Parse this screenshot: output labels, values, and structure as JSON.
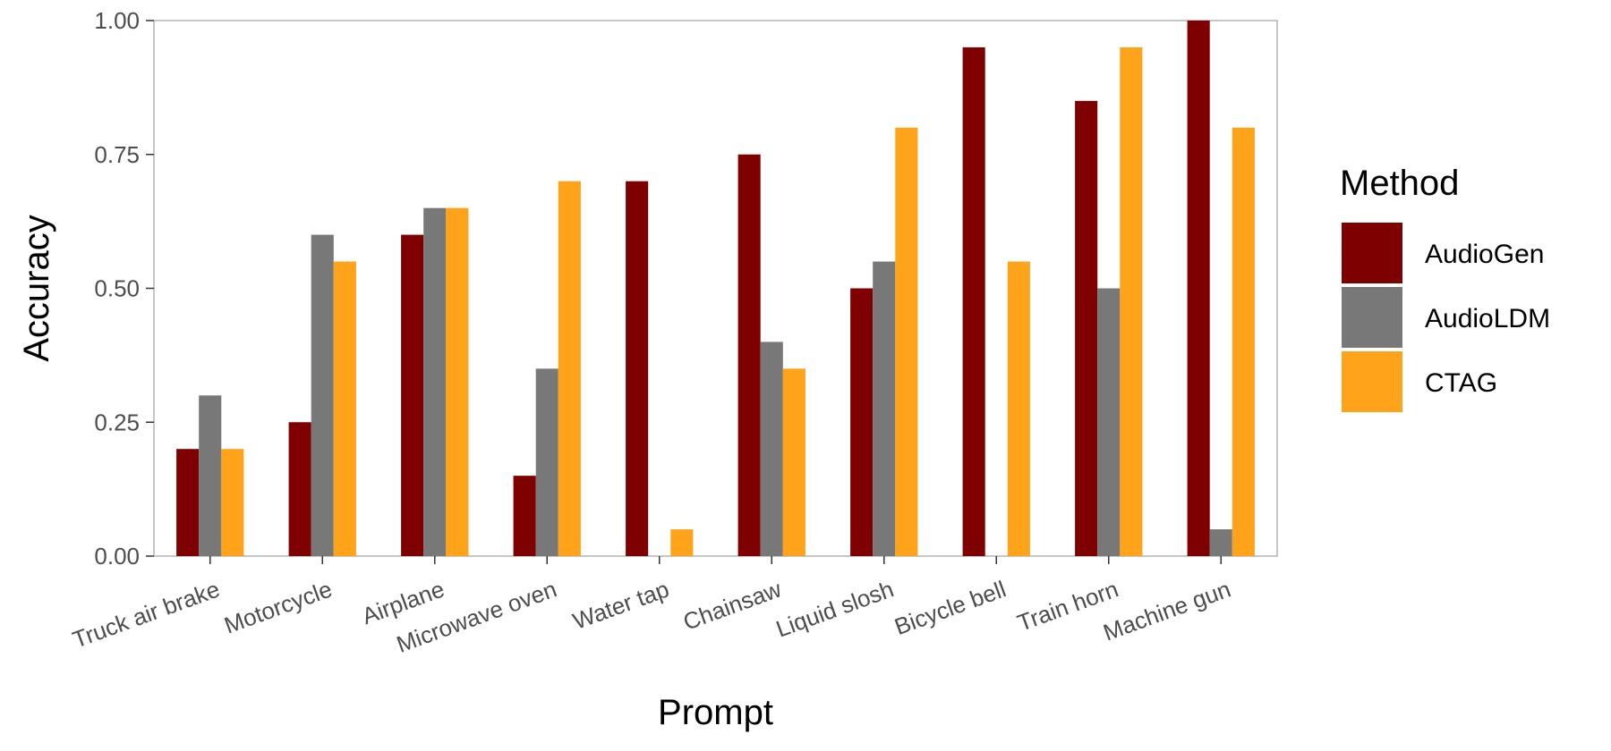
{
  "chart_data": {
    "type": "bar",
    "title": "",
    "xlabel": "Prompt",
    "ylabel": "Accuracy",
    "ylim": [
      0,
      1
    ],
    "yticks": [
      0,
      0.25,
      0.5,
      0.75,
      1
    ],
    "ytick_labels": [
      "0.00",
      "0.25",
      "0.50",
      "0.75",
      "1.00"
    ],
    "categories": [
      "Truck air brake",
      "Motorcycle",
      "Airplane",
      "Microwave oven",
      "Water tap",
      "Chainsaw",
      "Liquid slosh",
      "Bicycle bell",
      "Train horn",
      "Machine gun"
    ],
    "series": [
      {
        "name": "AudioGen",
        "color": "#7f0000",
        "values": [
          0.2,
          0.25,
          0.6,
          0.15,
          0.7,
          0.75,
          0.5,
          0.95,
          0.85,
          1.0
        ]
      },
      {
        "name": "AudioLDM",
        "color": "#787878",
        "values": [
          0.3,
          0.6,
          0.65,
          0.35,
          0.0,
          0.4,
          0.55,
          0.0,
          0.5,
          0.05
        ]
      },
      {
        "name": "CTAG",
        "color": "#ffa41a",
        "values": [
          0.2,
          0.55,
          0.65,
          0.7,
          0.05,
          0.35,
          0.8,
          0.55,
          0.95,
          0.8
        ]
      }
    ],
    "legend": {
      "title": "Method",
      "position": "right"
    },
    "grid": false,
    "panel_border_color": "#b3b3b3"
  }
}
